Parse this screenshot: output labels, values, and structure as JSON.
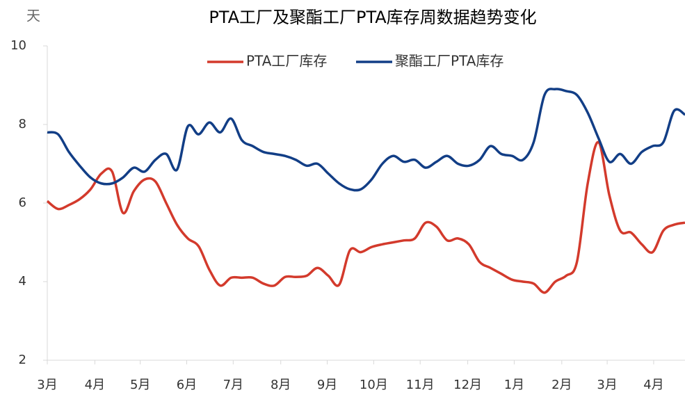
{
  "chart_data": {
    "type": "line",
    "title": "PTA工厂及聚酯工厂PTA库存周数据趋势变化",
    "y_label": "天",
    "x": [
      0,
      1,
      2,
      3,
      4,
      5,
      6,
      7,
      8,
      9,
      10,
      11,
      12,
      13,
      14,
      15,
      16,
      17,
      18,
      19,
      20,
      21,
      22,
      23,
      24,
      25,
      26,
      27,
      28,
      29,
      30,
      31,
      32,
      33,
      34,
      35,
      36,
      37,
      38,
      39,
      40,
      41,
      42,
      43,
      44,
      45,
      46,
      47,
      48,
      49,
      50,
      51,
      52,
      53,
      54,
      55,
      56,
      57,
      58,
      59
    ],
    "series": [
      {
        "name": "PTA工厂库存",
        "color": "#d33a2c",
        "values": [
          6.05,
          5.85,
          5.95,
          6.1,
          6.35,
          6.75,
          6.8,
          5.75,
          6.3,
          6.6,
          6.55,
          6.0,
          5.45,
          5.1,
          4.9,
          4.3,
          3.9,
          4.1,
          4.1,
          4.1,
          3.95,
          3.9,
          4.12,
          4.12,
          4.15,
          4.35,
          4.15,
          3.92,
          4.8,
          4.75,
          4.88,
          4.95,
          5.0,
          5.05,
          5.1,
          5.5,
          5.4,
          5.05,
          5.1,
          4.95,
          4.5,
          4.35,
          4.2,
          4.05,
          4.0,
          3.95,
          3.72,
          4.0,
          4.15,
          4.5,
          6.5,
          7.55,
          6.2,
          5.3,
          5.25,
          4.95,
          4.75,
          5.3,
          5.45,
          5.5
        ]
      },
      {
        "name": "聚酯工厂PTA库存",
        "color": "#123e86",
        "values": [
          7.8,
          7.75,
          7.3,
          6.95,
          6.65,
          6.5,
          6.5,
          6.65,
          6.9,
          6.8,
          7.1,
          7.25,
          6.85,
          7.95,
          7.75,
          8.05,
          7.8,
          8.15,
          7.6,
          7.45,
          7.3,
          7.25,
          7.2,
          7.1,
          6.95,
          7.0,
          6.75,
          6.5,
          6.35,
          6.35,
          6.6,
          7.0,
          7.2,
          7.05,
          7.1,
          6.9,
          7.05,
          7.2,
          7.0,
          6.95,
          7.1,
          7.45,
          7.25,
          7.2,
          7.1,
          7.55,
          8.75,
          8.9,
          8.85,
          8.75,
          8.3,
          7.65,
          7.05,
          7.25,
          7.0,
          7.3,
          7.45,
          7.55,
          8.35,
          8.25
        ]
      }
    ],
    "xlim": [
      0,
      59
    ],
    "xticks": [
      {
        "value": 0,
        "label": "3月"
      },
      {
        "value": 4.4,
        "label": "4月"
      },
      {
        "value": 8.6,
        "label": "5月"
      },
      {
        "value": 12.9,
        "label": "6月"
      },
      {
        "value": 17.2,
        "label": "7月"
      },
      {
        "value": 21.6,
        "label": "8月"
      },
      {
        "value": 25.9,
        "label": "9月"
      },
      {
        "value": 30.2,
        "label": "10月"
      },
      {
        "value": 34.5,
        "label": "11月"
      },
      {
        "value": 38.9,
        "label": "12月"
      },
      {
        "value": 43.2,
        "label": "1月"
      },
      {
        "value": 47.6,
        "label": "2月"
      },
      {
        "value": 51.8,
        "label": "3月"
      },
      {
        "value": 56.1,
        "label": "4月"
      }
    ],
    "ylim": [
      2,
      10
    ],
    "yticks": [
      2,
      4,
      6,
      8,
      10
    ],
    "grid": false,
    "legend": "top"
  }
}
